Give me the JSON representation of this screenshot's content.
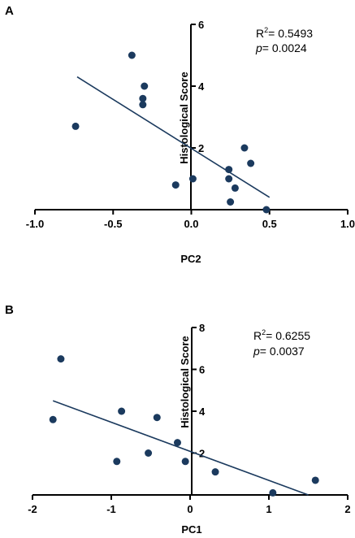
{
  "chart_data": [
    {
      "type": "scatter",
      "panel_label": "A",
      "xlabel": "PC2",
      "ylabel": "Histological Score",
      "xlim": [
        -1.0,
        1.0
      ],
      "ylim": [
        0,
        6
      ],
      "x_ticks": [
        "-1.0",
        "-0.5",
        "0.0",
        "0.5",
        "1.0"
      ],
      "x_tick_values": [
        -1.0,
        -0.5,
        0.0,
        0.5,
        1.0
      ],
      "y_ticks": [
        "2",
        "4",
        "6"
      ],
      "y_tick_values": [
        2,
        4,
        6
      ],
      "points": [
        {
          "x": -0.74,
          "y": 2.7
        },
        {
          "x": -0.38,
          "y": 5.0
        },
        {
          "x": -0.3,
          "y": 4.0
        },
        {
          "x": -0.31,
          "y": 3.6
        },
        {
          "x": -0.31,
          "y": 3.4
        },
        {
          "x": -0.1,
          "y": 0.8
        },
        {
          "x": 0.01,
          "y": 1.0
        },
        {
          "x": 0.24,
          "y": 1.0
        },
        {
          "x": 0.24,
          "y": 1.3
        },
        {
          "x": 0.28,
          "y": 0.7
        },
        {
          "x": 0.25,
          "y": 0.25
        },
        {
          "x": 0.34,
          "y": 2.0
        },
        {
          "x": 0.38,
          "y": 1.5
        },
        {
          "x": 0.48,
          "y": 0.0
        }
      ],
      "fit_line": {
        "x": [
          -0.73,
          0.5
        ],
        "y": [
          4.3,
          0.4
        ]
      },
      "r2_prefix": "R",
      "r2_sup": "2",
      "r2_value": "= 0.5493",
      "p_label": "p",
      "p_value": "= 0.0024"
    },
    {
      "type": "scatter",
      "panel_label": "B",
      "xlabel": "PC1",
      "ylabel": "Histological Score",
      "xlim": [
        -2,
        2
      ],
      "ylim": [
        0,
        8
      ],
      "x_ticks": [
        "-2",
        "-1",
        "0",
        "1",
        "2"
      ],
      "x_tick_values": [
        -2,
        -1,
        0,
        1,
        2
      ],
      "y_ticks": [
        "2",
        "4",
        "6",
        "8"
      ],
      "y_tick_values": [
        2,
        4,
        6,
        8
      ],
      "points": [
        {
          "x": -1.74,
          "y": 3.6
        },
        {
          "x": -1.64,
          "y": 6.5
        },
        {
          "x": -0.87,
          "y": 4.0
        },
        {
          "x": -0.93,
          "y": 1.6
        },
        {
          "x": -0.53,
          "y": 2.0
        },
        {
          "x": -0.42,
          "y": 3.7
        },
        {
          "x": -0.16,
          "y": 2.5
        },
        {
          "x": -0.06,
          "y": 1.6
        },
        {
          "x": 0.32,
          "y": 1.1
        },
        {
          "x": 1.05,
          "y": 0.1
        },
        {
          "x": 1.59,
          "y": 0.7
        }
      ],
      "fit_line": {
        "x": [
          -1.74,
          1.5
        ],
        "y": [
          4.5,
          0.0
        ]
      },
      "r2_prefix": "R",
      "r2_sup": "2",
      "r2_value": "= 0.6255",
      "p_label": "p",
      "p_value": "= 0.0037"
    }
  ]
}
